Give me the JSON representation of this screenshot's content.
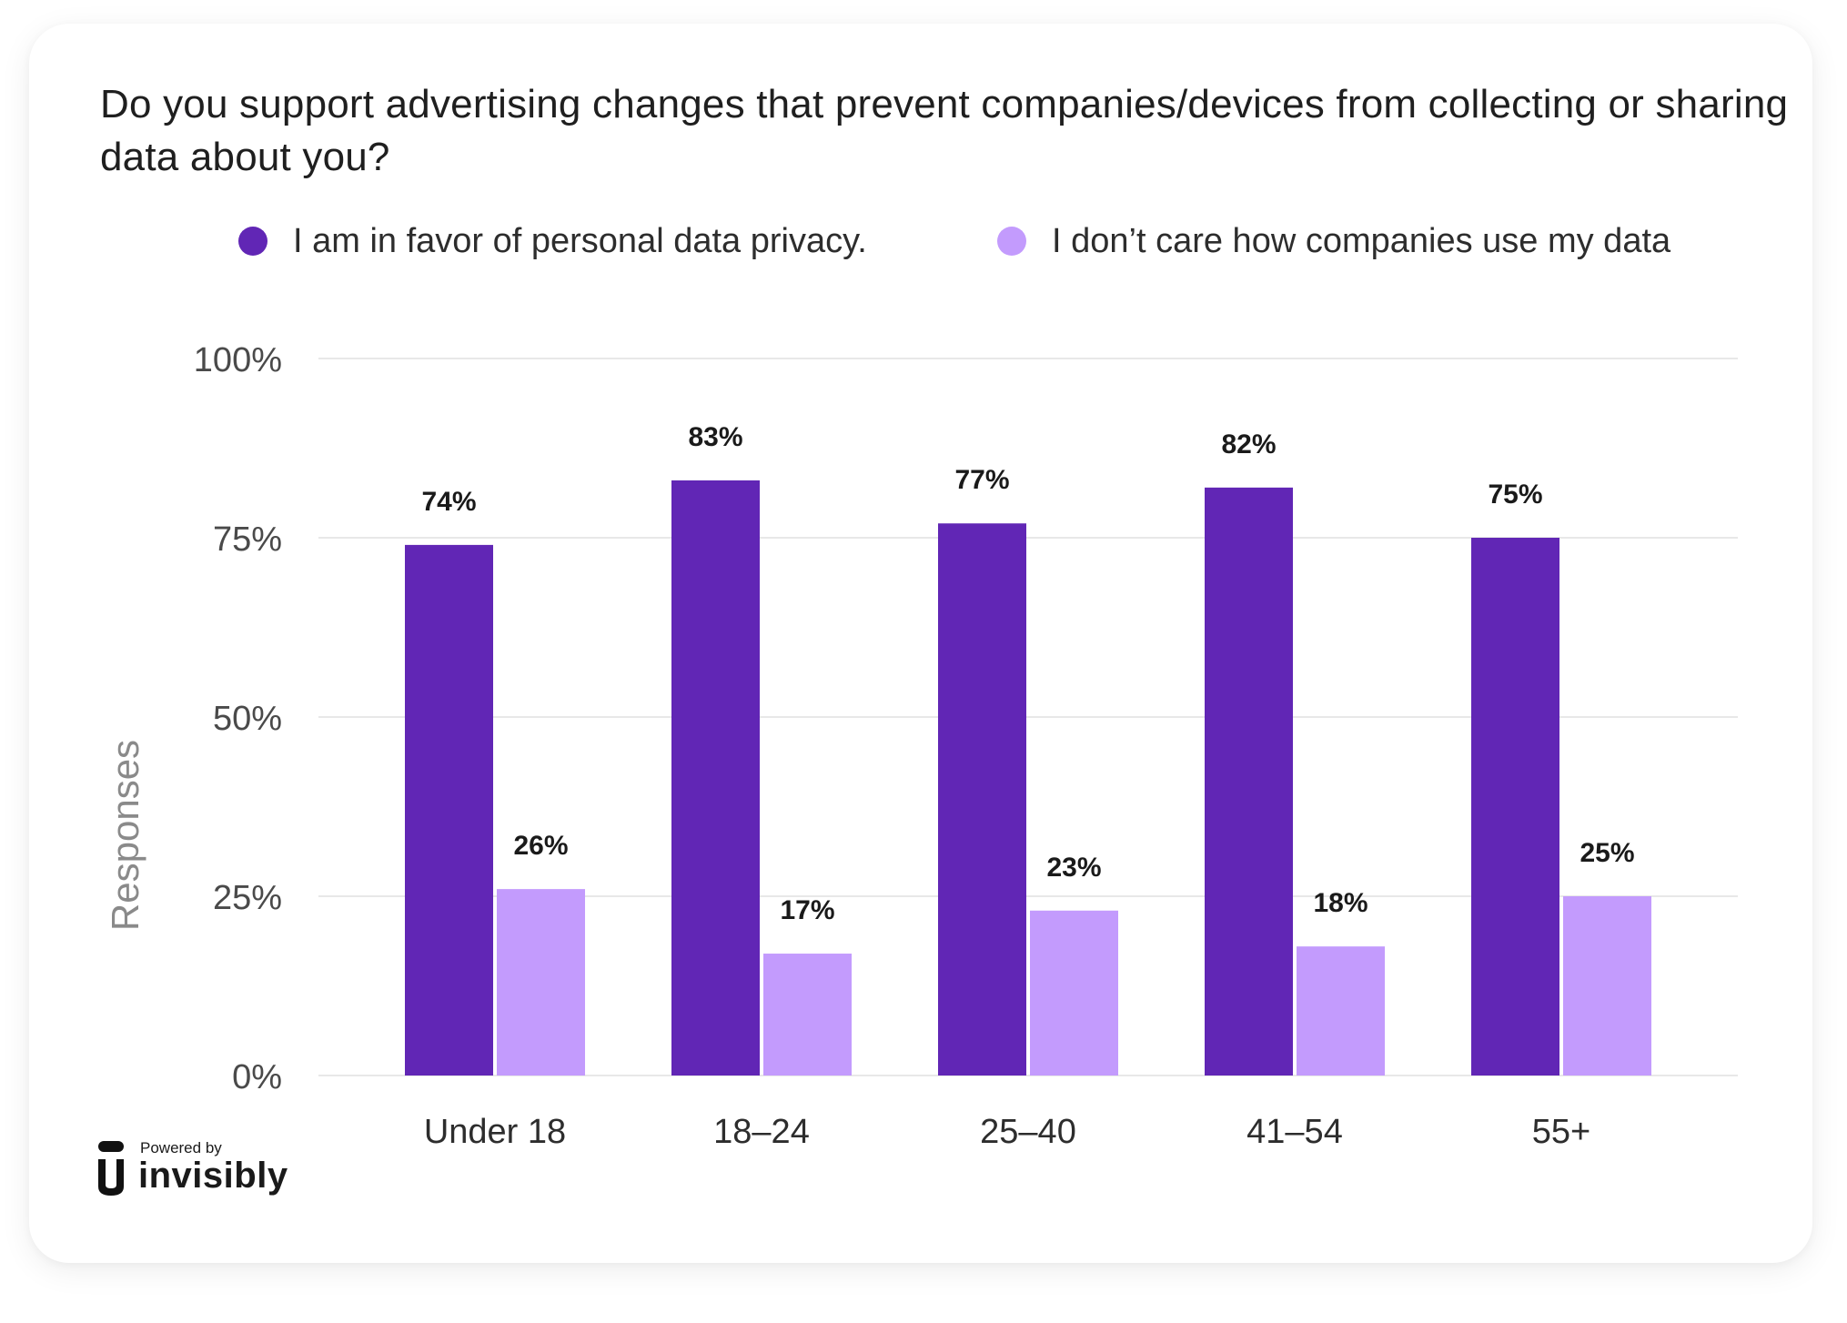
{
  "chart_data": {
    "type": "bar",
    "title": "Do you support advertising changes that prevent companies/devices from collecting or sharing data about you?",
    "categories": [
      "Under 18",
      "18–24",
      "25–40",
      "41–54",
      "55+"
    ],
    "series": [
      {
        "name": "I am in favor of personal data privacy.",
        "color": "#6126b5",
        "values": [
          74,
          83,
          77,
          82,
          75
        ],
        "labels": [
          "74%",
          "83%",
          "77%",
          "82%",
          "75%"
        ]
      },
      {
        "name": "I don’t care how companies use my data",
        "color": "#c39bfd",
        "values": [
          26,
          17,
          23,
          18,
          25
        ],
        "labels": [
          "26%",
          "17%",
          "23%",
          "18%",
          "25%"
        ]
      }
    ],
    "ylabel": "Responses",
    "xlabel": "",
    "ylim": [
      0,
      100
    ],
    "yticks": [
      0,
      25,
      50,
      75,
      100
    ],
    "ytick_labels": [
      "0%",
      "25%",
      "50%",
      "75%",
      "100%"
    ],
    "grid": true,
    "legend_position": "top"
  },
  "branding": {
    "powered_by": "Powered by",
    "name": "invisibly"
  },
  "colors": {
    "grid": "#e8e8e8",
    "tick_text": "#4a4a4a",
    "axis_label": "#8a8a8a",
    "data_label": "#1a1a1a"
  }
}
